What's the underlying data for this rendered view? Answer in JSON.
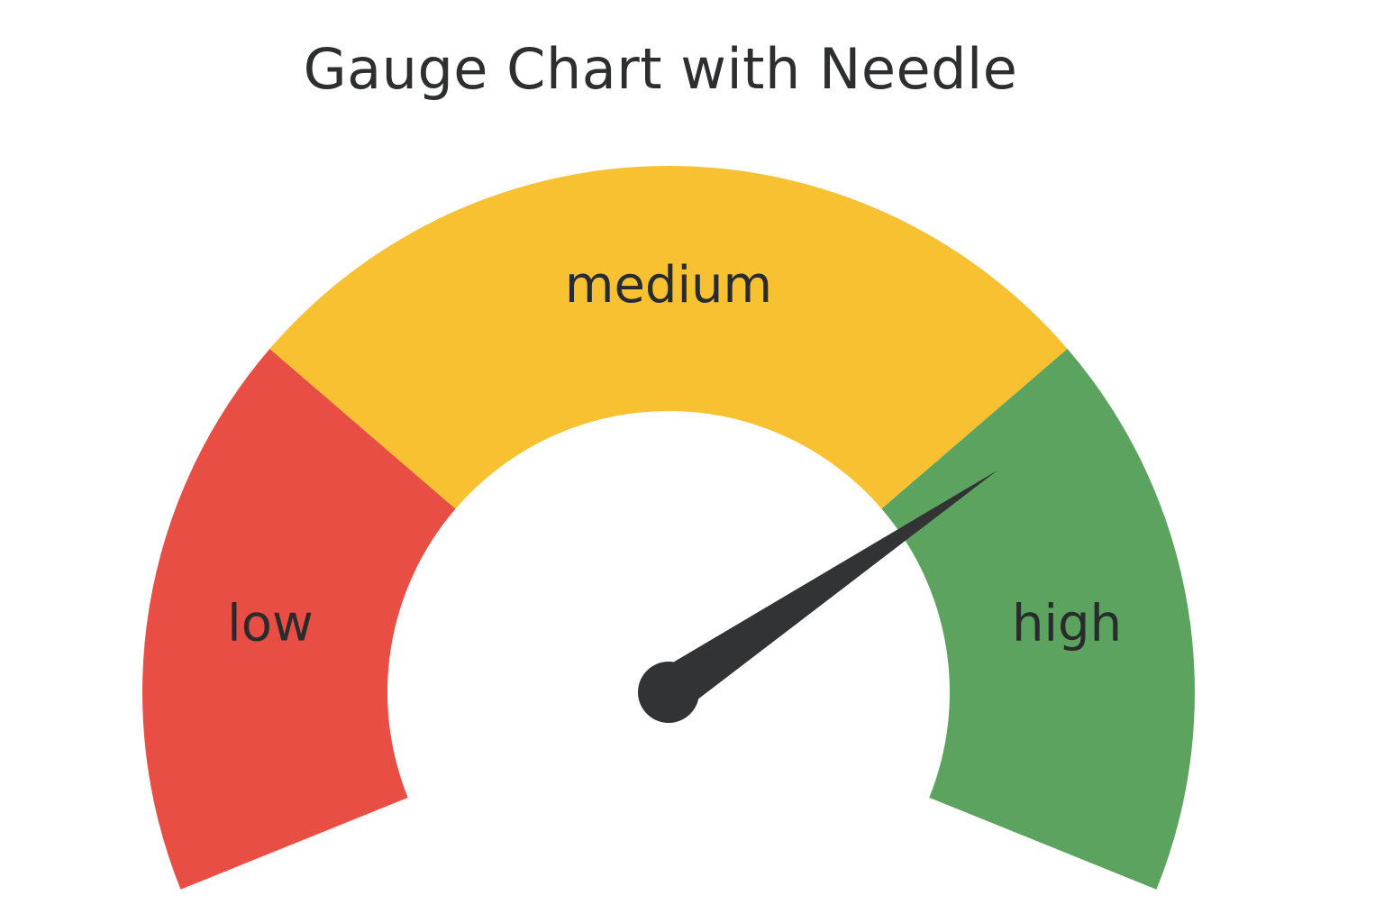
{
  "chart_data": {
    "type": "gauge",
    "title": "Gauge Chart with Needle",
    "range": [
      0,
      100
    ],
    "value": 75,
    "bands": [
      {
        "label": "low",
        "from": 0,
        "to": 28,
        "color": "#e94e45"
      },
      {
        "label": "medium",
        "from": 28,
        "to": 72,
        "color": "#f8c131"
      },
      {
        "label": "high",
        "from": 72,
        "to": 100,
        "color": "#5ba35f"
      }
    ],
    "needle_color": "#323335",
    "background": "#ffffff"
  }
}
